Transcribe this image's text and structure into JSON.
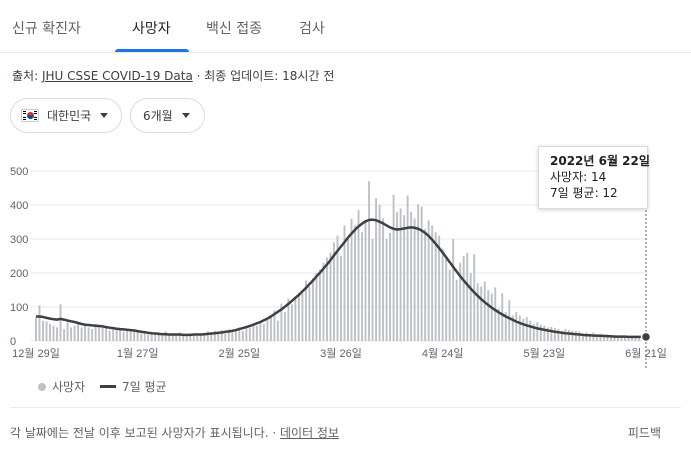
{
  "tabs": [
    {
      "label": "신규 확진자"
    },
    {
      "label": "사망자"
    },
    {
      "label": "백신 접종"
    },
    {
      "label": "검사"
    }
  ],
  "active_tab": "사망자",
  "source": {
    "prefix": "출처: ",
    "link": "JHU CSSE COVID-19 Data",
    "suffix": " · 최종 업데이트: 18시간 전"
  },
  "filters": {
    "region": "대한민국",
    "period": "6개월"
  },
  "tooltip": {
    "date": "2022년 6월 22일",
    "deaths": "사망자: 14",
    "avg": "7일 평균: 12"
  },
  "legend": {
    "bars": "사망자",
    "line": "7일 평균"
  },
  "footer": {
    "note": "각 날짜에는 전날 이후 보고된 사망자가 표시됩니다. · ",
    "link": "데이터 정보",
    "feedback": "피드백"
  },
  "colors": {
    "bar": "#bdc1c6",
    "line": "#3c4043",
    "active_tab": "#1a73e8"
  },
  "chart_data": {
    "type": "bar",
    "y_ticks": [
      "0",
      "100",
      "200",
      "300",
      "400",
      "500"
    ],
    "ylim": [
      0,
      500
    ],
    "x_ticks": [
      "12월 29일",
      "1월 27일",
      "2월 25일",
      "3월 26일",
      "4월 24일",
      "5월 23일",
      "6월 21일"
    ],
    "x_tick_index": [
      0,
      29,
      58,
      87,
      116,
      145,
      174
    ],
    "series": [
      {
        "name": "사망자",
        "values": [
          70,
          105,
          60,
          58,
          50,
          45,
          40,
          108,
          35,
          55,
          40,
          45,
          52,
          40,
          48,
          40,
          35,
          50,
          45,
          38,
          42,
          30,
          38,
          40,
          35,
          28,
          32,
          30,
          28,
          30,
          22,
          25,
          20,
          23,
          18,
          26,
          15,
          28,
          20,
          22,
          18,
          25,
          16,
          20,
          18,
          22,
          15,
          22,
          18,
          28,
          20,
          30,
          25,
          32,
          22,
          34,
          28,
          35,
          40,
          30,
          42,
          38,
          48,
          45,
          55,
          50,
          62,
          70,
          90,
          60,
          110,
          85,
          125,
          108,
          130,
          135,
          140,
          178,
          160,
          185,
          200,
          210,
          230,
          245,
          260,
          290,
          310,
          250,
          340,
          300,
          360,
          340,
          385,
          320,
          352,
          470,
          300,
          420,
          400,
          360,
          300,
          318,
          430,
          380,
          390,
          370,
          428,
          380,
          360,
          402,
          395,
          330,
          355,
          340,
          320,
          310,
          270,
          250,
          210,
          300,
          180,
          230,
          250,
          260,
          200,
          255,
          170,
          160,
          175,
          150,
          140,
          158,
          95,
          140,
          85,
          120,
          75,
          85,
          75,
          65,
          70,
          60,
          50,
          55,
          48,
          45,
          40,
          42,
          38,
          35,
          30,
          35,
          32,
          30,
          30,
          28,
          22,
          25,
          20,
          25,
          18,
          22,
          15,
          20,
          15,
          18,
          15,
          14,
          15,
          13,
          12,
          14,
          10,
          12,
          14
        ]
      },
      {
        "name": "7일 평균",
        "values": [
          72,
          72,
          71,
          68,
          66,
          64,
          63,
          65,
          63,
          60,
          58,
          56,
          53,
          50,
          48,
          47,
          46,
          45,
          44,
          43,
          41,
          39,
          38,
          36,
          35,
          34,
          33,
          32,
          31,
          29,
          27,
          26,
          24,
          23,
          22,
          21,
          20,
          20,
          19,
          19,
          19,
          19,
          18,
          18,
          18,
          19,
          19,
          19,
          20,
          21,
          22,
          23,
          24,
          25,
          27,
          28,
          30,
          32,
          35,
          38,
          41,
          44,
          48,
          52,
          56,
          61,
          66,
          72,
          79,
          86,
          93,
          101,
          109,
          118,
          127,
          136,
          146,
          156,
          167,
          178,
          190,
          201,
          213,
          225,
          238,
          252,
          265,
          278,
          291,
          304,
          316,
          327,
          337,
          345,
          352,
          356,
          357,
          355,
          351,
          346,
          340,
          334,
          330,
          328,
          329,
          331,
          333,
          334,
          333,
          330,
          325,
          318,
          309,
          298,
          286,
          273,
          260,
          246,
          232,
          218,
          204,
          191,
          178,
          166,
          154,
          143,
          133,
          123,
          114,
          106,
          98,
          91,
          84,
          78,
          72,
          67,
          62,
          57,
          53,
          49,
          46,
          43,
          40,
          37,
          35,
          33,
          31,
          29,
          27,
          26,
          24,
          23,
          22,
          21,
          20,
          19,
          18,
          17,
          17,
          16,
          16,
          15,
          15,
          14,
          14,
          13,
          13,
          13,
          13,
          12,
          12,
          12,
          12,
          12,
          12
        ]
      }
    ]
  }
}
